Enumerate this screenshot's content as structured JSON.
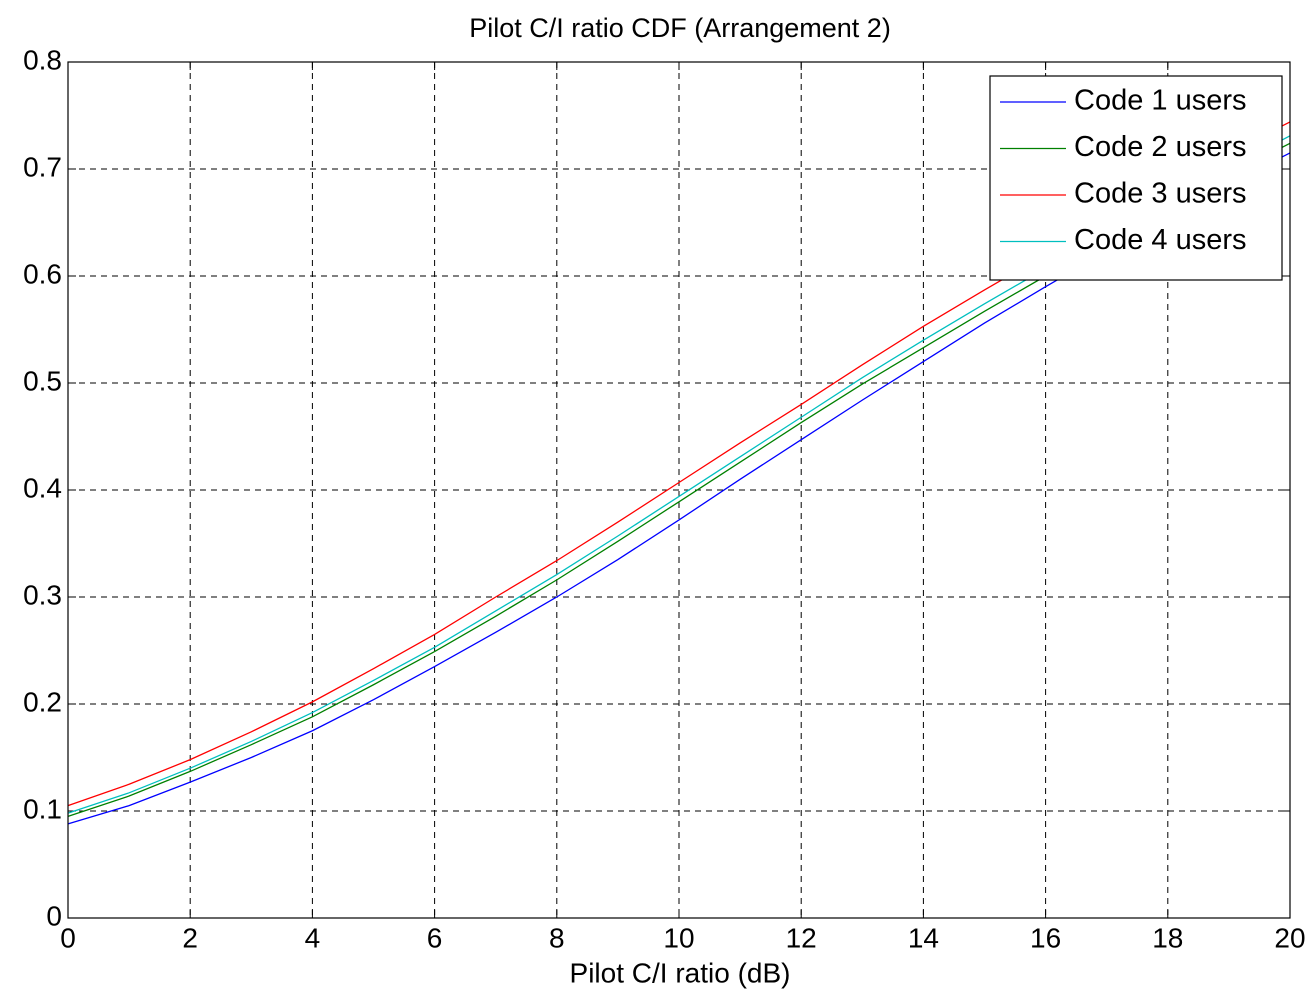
{
  "chart_data": {
    "type": "line",
    "title": "Pilot C/I ratio CDF (Arrangement 2)",
    "x_label": "Pilot C/I ratio (dB)",
    "x": [
      0,
      1,
      2,
      3,
      4,
      5,
      6,
      7,
      8,
      9,
      10,
      11,
      12,
      13,
      14,
      15,
      16,
      17,
      18,
      19,
      20
    ],
    "series": [
      {
        "name": "Code 1 users",
        "color": "#0000ff",
        "values": [
          0.088,
          0.105,
          0.127,
          0.15,
          0.175,
          0.204,
          0.235,
          0.267,
          0.3,
          0.335,
          0.372,
          0.41,
          0.447,
          0.484,
          0.52,
          0.556,
          0.59,
          0.623,
          0.655,
          0.686,
          0.715
        ]
      },
      {
        "name": "Code 2 users",
        "color": "#008000",
        "values": [
          0.095,
          0.114,
          0.137,
          0.162,
          0.188,
          0.218,
          0.249,
          0.282,
          0.316,
          0.352,
          0.389,
          0.426,
          0.463,
          0.499,
          0.533,
          0.567,
          0.6,
          0.633,
          0.665,
          0.695,
          0.724
        ]
      },
      {
        "name": "Code 3 users",
        "color": "#ff0000",
        "values": [
          0.105,
          0.125,
          0.148,
          0.174,
          0.202,
          0.233,
          0.265,
          0.3,
          0.334,
          0.37,
          0.407,
          0.444,
          0.48,
          0.517,
          0.553,
          0.587,
          0.62,
          0.652,
          0.684,
          0.715,
          0.744
        ]
      },
      {
        "name": "Code 4 users",
        "color": "#00bfbf",
        "values": [
          0.098,
          0.117,
          0.14,
          0.165,
          0.192,
          0.222,
          0.253,
          0.287,
          0.321,
          0.357,
          0.394,
          0.431,
          0.468,
          0.505,
          0.54,
          0.574,
          0.607,
          0.64,
          0.671,
          0.701,
          0.731
        ]
      }
    ],
    "xlim": [
      0,
      20
    ],
    "xticks": [
      0,
      2,
      4,
      6,
      8,
      10,
      12,
      14,
      16,
      18,
      20
    ],
    "ylim": [
      0,
      0.8
    ],
    "yticks": [
      0,
      0.1,
      0.2,
      0.3,
      0.4,
      0.5,
      0.6,
      0.7,
      0.8
    ],
    "grid": true,
    "legend": "upper right"
  }
}
